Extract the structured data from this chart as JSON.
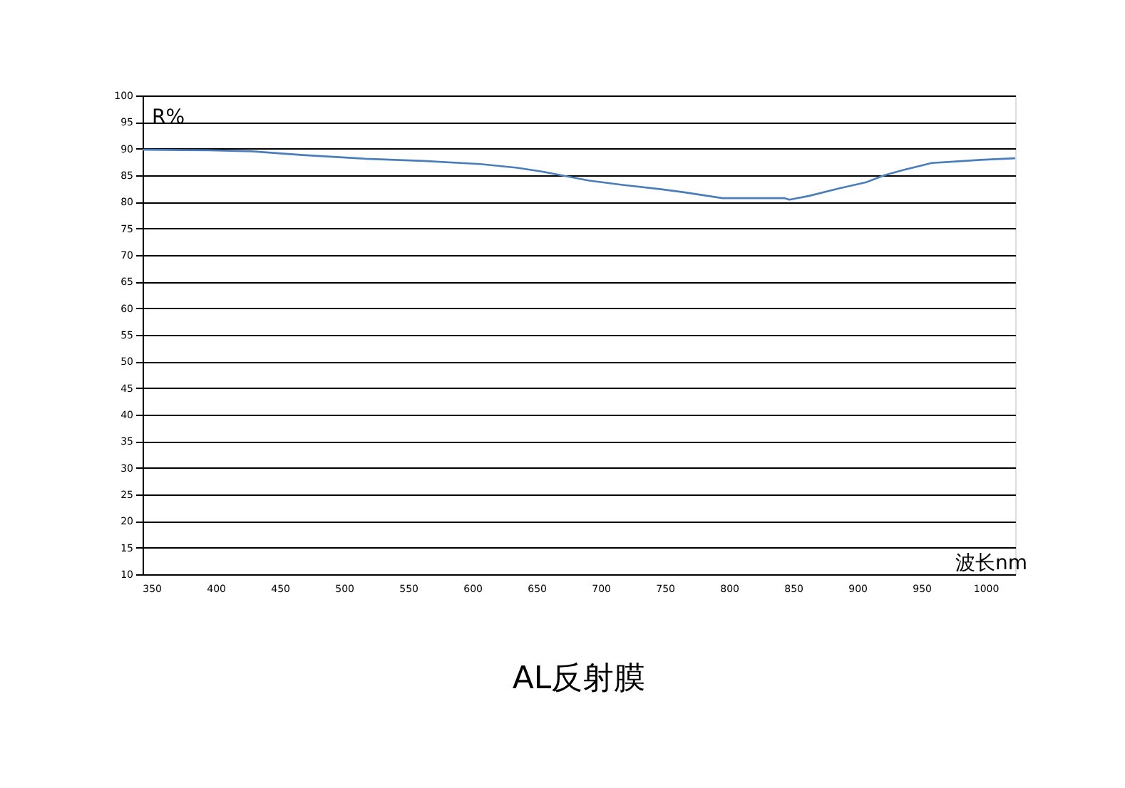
{
  "chart_data": {
    "type": "line",
    "title": "AL反射膜",
    "xlabel": "波长nm",
    "ylabel": "R%",
    "x": [
      343,
      395,
      428,
      468,
      517,
      562,
      606,
      635,
      654,
      665,
      691,
      717,
      746,
      765,
      784,
      795,
      843,
      847,
      862,
      885,
      907,
      921,
      936,
      958,
      977,
      996,
      1023
    ],
    "series": [
      {
        "color": "#4a7ebb",
        "values": [
          89.8,
          89.7,
          89.5,
          88.8,
          88.1,
          87.7,
          87.1,
          86.4,
          85.7,
          85.2,
          84.0,
          83.2,
          82.4,
          81.8,
          81.1,
          80.7,
          80.7,
          80.4,
          81.1,
          82.5,
          83.7,
          85.0,
          86.0,
          87.3,
          87.6,
          87.9,
          88.2
        ]
      }
    ],
    "xlim": [
      343,
      1023
    ],
    "ylim": [
      10,
      100
    ],
    "xticks": [
      350,
      400,
      450,
      500,
      550,
      600,
      650,
      700,
      750,
      800,
      850,
      900,
      950,
      1000
    ],
    "yticks": [
      10,
      15,
      20,
      25,
      30,
      35,
      40,
      45,
      50,
      55,
      60,
      65,
      70,
      75,
      80,
      85,
      90,
      95,
      100
    ],
    "grid": "y",
    "marker": "none",
    "line_style": "solid"
  }
}
